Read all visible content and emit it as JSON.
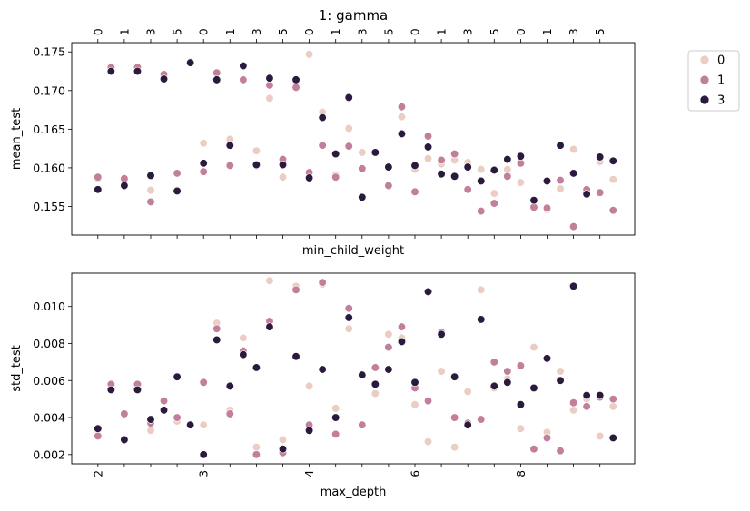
{
  "figure": {
    "title": "1: gamma",
    "legend": {
      "placement": "outside-right",
      "entries": [
        {
          "label": "0",
          "color": "#ebcdc3"
        },
        {
          "label": "1",
          "color": "#c17f99"
        },
        {
          "label": "3",
          "color": "#2a1a3e"
        }
      ]
    }
  },
  "chart_data": [
    {
      "type": "scatter",
      "panel": "top",
      "xlabel": "min_child_weight",
      "ylabel": "mean_test",
      "ylim": [
        0.1513,
        0.1762
      ],
      "y_ticks": [
        "0.155",
        "0.160",
        "0.165",
        "0.170",
        "0.175"
      ],
      "x_top_ticks": [
        "0",
        "1",
        "3",
        "5",
        "0",
        "1",
        "3",
        "5",
        "0",
        "1",
        "3",
        "5",
        "0",
        "1",
        "3",
        "5",
        "0",
        "1",
        "3",
        "5"
      ],
      "grid": false,
      "series": [
        {
          "name": "0",
          "color": "#ebcdc3",
          "points": [
            [
              1,
              0.1586
            ],
            [
              2,
              0.1731
            ],
            [
              3,
              0.1587
            ],
            [
              4,
              0.173
            ],
            [
              5,
              0.1571
            ],
            [
              6,
              0.1721
            ],
            [
              7,
              0.1571
            ],
            [
              8,
              0.1737
            ],
            [
              9,
              0.1632
            ],
            [
              10,
              0.1723
            ],
            [
              11,
              0.1637
            ],
            [
              12,
              0.1714
            ],
            [
              13,
              0.1622
            ],
            [
              14,
              0.169
            ],
            [
              15,
              0.1588
            ],
            [
              16,
              0.171
            ],
            [
              17,
              0.1747
            ],
            [
              18,
              0.1672
            ],
            [
              19,
              0.1591
            ],
            [
              20,
              0.1651
            ],
            [
              21,
              0.162
            ],
            [
              22,
              0.1619
            ],
            [
              23,
              0.1601
            ],
            [
              24,
              0.1666
            ],
            [
              25,
              0.1598
            ],
            [
              26,
              0.1612
            ],
            [
              27,
              0.1605
            ],
            [
              28,
              0.161
            ],
            [
              29,
              0.1607
            ],
            [
              30,
              0.1598
            ],
            [
              31,
              0.1567
            ],
            [
              32,
              0.1598
            ],
            [
              33,
              0.1581
            ],
            [
              34,
              0.1558
            ],
            [
              35,
              0.1546
            ],
            [
              36,
              0.1573
            ],
            [
              37,
              0.1624
            ],
            [
              38,
              0.1567
            ],
            [
              39,
              0.1608
            ],
            [
              40,
              0.1585
            ]
          ]
        },
        {
          "name": "1",
          "color": "#c17f99",
          "points": [
            [
              1,
              0.1588
            ],
            [
              2,
              0.173
            ],
            [
              3,
              0.1586
            ],
            [
              4,
              0.173
            ],
            [
              5,
              0.1556
            ],
            [
              6,
              0.1721
            ],
            [
              7,
              0.1593
            ],
            [
              8,
              0.1737
            ],
            [
              9,
              0.1595
            ],
            [
              10,
              0.1723
            ],
            [
              11,
              0.1603
            ],
            [
              12,
              0.1714
            ],
            [
              13,
              0.1603
            ],
            [
              14,
              0.1707
            ],
            [
              15,
              0.1611
            ],
            [
              16,
              0.1704
            ],
            [
              17,
              0.1594
            ],
            [
              18,
              0.1629
            ],
            [
              19,
              0.1588
            ],
            [
              20,
              0.1628
            ],
            [
              21,
              0.1599
            ],
            [
              22,
              0.162
            ],
            [
              23,
              0.1577
            ],
            [
              24,
              0.1679
            ],
            [
              25,
              0.1569
            ],
            [
              26,
              0.1641
            ],
            [
              27,
              0.161
            ],
            [
              28,
              0.1618
            ],
            [
              29,
              0.1572
            ],
            [
              30,
              0.1544
            ],
            [
              31,
              0.1554
            ],
            [
              32,
              0.1589
            ],
            [
              33,
              0.1606
            ],
            [
              34,
              0.1549
            ],
            [
              35,
              0.1548
            ],
            [
              36,
              0.1584
            ],
            [
              37,
              0.1524
            ],
            [
              38,
              0.1572
            ],
            [
              39,
              0.1568
            ],
            [
              40,
              0.1545
            ]
          ]
        },
        {
          "name": "3",
          "color": "#2a1a3e",
          "points": [
            [
              1,
              0.1572
            ],
            [
              2,
              0.1725
            ],
            [
              3,
              0.1577
            ],
            [
              4,
              0.1725
            ],
            [
              5,
              0.159
            ],
            [
              6,
              0.1715
            ],
            [
              7,
              0.157
            ],
            [
              8,
              0.1736
            ],
            [
              9,
              0.1606
            ],
            [
              10,
              0.1714
            ],
            [
              11,
              0.1629
            ],
            [
              12,
              0.1732
            ],
            [
              13,
              0.1604
            ],
            [
              14,
              0.1716
            ],
            [
              15,
              0.1604
            ],
            [
              16,
              0.1714
            ],
            [
              17,
              0.1587
            ],
            [
              18,
              0.1665
            ],
            [
              19,
              0.1618
            ],
            [
              20,
              0.1691
            ],
            [
              21,
              0.1562
            ],
            [
              22,
              0.162
            ],
            [
              23,
              0.1601
            ],
            [
              24,
              0.1644
            ],
            [
              25,
              0.1603
            ],
            [
              26,
              0.1627
            ],
            [
              27,
              0.1592
            ],
            [
              28,
              0.1589
            ],
            [
              29,
              0.1601
            ],
            [
              30,
              0.1583
            ],
            [
              31,
              0.1597
            ],
            [
              32,
              0.1611
            ],
            [
              33,
              0.1615
            ],
            [
              34,
              0.1558
            ],
            [
              35,
              0.1583
            ],
            [
              36,
              0.1629
            ],
            [
              37,
              0.1593
            ],
            [
              38,
              0.1566
            ],
            [
              39,
              0.1614
            ],
            [
              40,
              0.1609
            ]
          ]
        }
      ]
    },
    {
      "type": "scatter",
      "panel": "bottom",
      "xlabel": "max_depth",
      "ylabel": "std_test",
      "ylim": [
        0.0015,
        0.0118
      ],
      "y_ticks": [
        "0.002",
        "0.004",
        "0.006",
        "0.008",
        "0.010"
      ],
      "x_ticks": [
        {
          "label": "2",
          "at": 1
        },
        {
          "label": "3",
          "at": 9
        },
        {
          "label": "4",
          "at": 17
        },
        {
          "label": "6",
          "at": 25
        },
        {
          "label": "8",
          "at": 33
        }
      ],
      "grid": false,
      "series": [
        {
          "name": "0",
          "color": "#ebcdc3",
          "points": [
            [
              1,
              0.0033
            ],
            [
              2,
              0.0058
            ],
            [
              3,
              0.0028
            ],
            [
              4,
              0.0058
            ],
            [
              5,
              0.0033
            ],
            [
              6,
              0.0044
            ],
            [
              7,
              0.0038
            ],
            [
              8,
              0.0036
            ],
            [
              9,
              0.0036
            ],
            [
              10,
              0.0091
            ],
            [
              11,
              0.0044
            ],
            [
              12,
              0.0083
            ],
            [
              13,
              0.0024
            ],
            [
              14,
              0.0114
            ],
            [
              15,
              0.0028
            ],
            [
              16,
              0.0111
            ],
            [
              17,
              0.0057
            ],
            [
              18,
              0.0112
            ],
            [
              19,
              0.0045
            ],
            [
              20,
              0.0088
            ],
            [
              21,
              0.0036
            ],
            [
              22,
              0.0053
            ],
            [
              23,
              0.0085
            ],
            [
              24,
              0.0083
            ],
            [
              25,
              0.0047
            ],
            [
              26,
              0.0027
            ],
            [
              27,
              0.0065
            ],
            [
              28,
              0.0024
            ],
            [
              29,
              0.0054
            ],
            [
              30,
              0.0109
            ],
            [
              31,
              0.0056
            ],
            [
              32,
              0.0061
            ],
            [
              33,
              0.0034
            ],
            [
              34,
              0.0078
            ],
            [
              35,
              0.0032
            ],
            [
              36,
              0.0065
            ],
            [
              37,
              0.0044
            ],
            [
              38,
              0.005
            ],
            [
              39,
              0.003
            ],
            [
              40,
              0.0046
            ]
          ]
        },
        {
          "name": "1",
          "color": "#c17f99",
          "points": [
            [
              1,
              0.003
            ],
            [
              2,
              0.0058
            ],
            [
              3,
              0.0042
            ],
            [
              4,
              0.0058
            ],
            [
              5,
              0.0037
            ],
            [
              6,
              0.0049
            ],
            [
              7,
              0.004
            ],
            [
              8,
              0.0036
            ],
            [
              9,
              0.0059
            ],
            [
              10,
              0.0088
            ],
            [
              11,
              0.0042
            ],
            [
              12,
              0.0076
            ],
            [
              13,
              0.002
            ],
            [
              14,
              0.0092
            ],
            [
              15,
              0.0021
            ],
            [
              16,
              0.0109
            ],
            [
              17,
              0.0036
            ],
            [
              18,
              0.0113
            ],
            [
              19,
              0.0031
            ],
            [
              20,
              0.0099
            ],
            [
              21,
              0.0036
            ],
            [
              22,
              0.0067
            ],
            [
              23,
              0.0078
            ],
            [
              24,
              0.0089
            ],
            [
              25,
              0.0056
            ],
            [
              26,
              0.0049
            ],
            [
              27,
              0.0086
            ],
            [
              28,
              0.004
            ],
            [
              29,
              0.0037
            ],
            [
              30,
              0.0039
            ],
            [
              31,
              0.007
            ],
            [
              32,
              0.0065
            ],
            [
              33,
              0.0068
            ],
            [
              34,
              0.0023
            ],
            [
              35,
              0.0029
            ],
            [
              36,
              0.0022
            ],
            [
              37,
              0.0048
            ],
            [
              38,
              0.0046
            ],
            [
              39,
              0.0051
            ],
            [
              40,
              0.005
            ]
          ]
        },
        {
          "name": "3",
          "color": "#2a1a3e",
          "points": [
            [
              1,
              0.0034
            ],
            [
              2,
              0.0055
            ],
            [
              3,
              0.0028
            ],
            [
              4,
              0.0055
            ],
            [
              5,
              0.0039
            ],
            [
              6,
              0.0044
            ],
            [
              7,
              0.0062
            ],
            [
              8,
              0.0036
            ],
            [
              9,
              0.002
            ],
            [
              10,
              0.0082
            ],
            [
              11,
              0.0057
            ],
            [
              12,
              0.0074
            ],
            [
              13,
              0.0067
            ],
            [
              14,
              0.0089
            ],
            [
              15,
              0.0023
            ],
            [
              16,
              0.0073
            ],
            [
              17,
              0.0033
            ],
            [
              18,
              0.0066
            ],
            [
              19,
              0.004
            ],
            [
              20,
              0.0094
            ],
            [
              21,
              0.0063
            ],
            [
              22,
              0.0058
            ],
            [
              23,
              0.0066
            ],
            [
              24,
              0.0081
            ],
            [
              25,
              0.0059
            ],
            [
              26,
              0.0108
            ],
            [
              27,
              0.0085
            ],
            [
              28,
              0.0062
            ],
            [
              29,
              0.0036
            ],
            [
              30,
              0.0093
            ],
            [
              31,
              0.0057
            ],
            [
              32,
              0.0059
            ],
            [
              33,
              0.0047
            ],
            [
              34,
              0.0056
            ],
            [
              35,
              0.0072
            ],
            [
              36,
              0.006
            ],
            [
              37,
              0.0111
            ],
            [
              38,
              0.0052
            ],
            [
              39,
              0.0052
            ],
            [
              40,
              0.0029
            ]
          ]
        }
      ]
    }
  ]
}
